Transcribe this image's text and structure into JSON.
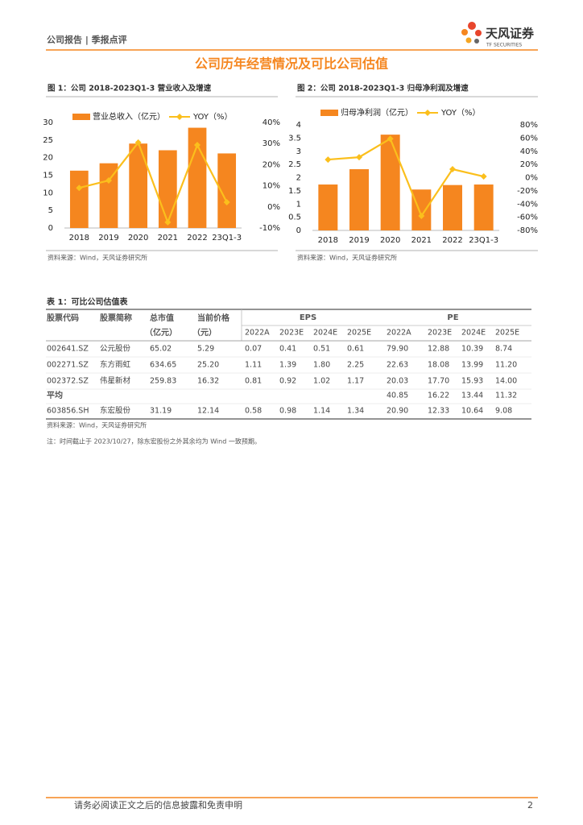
{
  "header": {
    "report": "公司报告 | 季报点评",
    "logo_cn": "天风证券",
    "logo_en": "TF SECURITIES"
  },
  "section_title": "公司历年经营情况及可比公司估值",
  "chart_data": [
    {
      "type": "bar",
      "title": "图 1：公司 2018-2023Q1-3 营业收入及增速",
      "source": "资料来源：Wind，天风证券研究所",
      "categories": [
        "2018",
        "2019",
        "2020",
        "2021",
        "2022",
        "23Q1-3"
      ],
      "series": [
        {
          "name": "营业总收入（亿元）",
          "color": "#f5861f",
          "values": [
            16.3,
            18.4,
            24.0,
            22.1,
            28.5,
            21.2
          ]
        },
        {
          "name": "YOY（%）",
          "type": "line",
          "axis": "y2",
          "color": "#fbbf1c",
          "values": [
            9,
            12.5,
            30.5,
            -7.3,
            29.3,
            2.2
          ]
        }
      ],
      "ylim": [
        0,
        30
      ],
      "yticks": [
        0,
        5,
        10,
        15,
        20,
        25,
        30
      ],
      "y2lim": [
        -10,
        40
      ],
      "y2ticks": [
        {
          "value": -10,
          "label": "-10%"
        },
        {
          "value": 0,
          "label": "0%"
        },
        {
          "value": 10,
          "label": "10%"
        },
        {
          "value": 20,
          "label": "20%"
        },
        {
          "value": 30,
          "label": "30%"
        },
        {
          "value": 40,
          "label": "40%"
        }
      ]
    },
    {
      "type": "bar",
      "title": "图 2：公司 2018-2023Q1-3 归母净利润及增速",
      "source": "资料来源：Wind，天风证券研究所",
      "categories": [
        "2018",
        "2019",
        "2020",
        "2021",
        "2022",
        "23Q1-3"
      ],
      "series": [
        {
          "name": "归母净利润（亿元）",
          "color": "#f5861f",
          "values": [
            1.74,
            2.32,
            3.63,
            1.55,
            1.72,
            1.74
          ]
        },
        {
          "name": "YOY（%）",
          "type": "line",
          "axis": "y2",
          "color": "#fbbf1c",
          "values": [
            27.4,
            31,
            59,
            -58,
            12.8,
            1.8
          ]
        }
      ],
      "ylim": [
        0,
        4
      ],
      "yticks": [
        0,
        0.5,
        1,
        1.5,
        2,
        2.5,
        3,
        3.5,
        4
      ],
      "y2lim": [
        -80,
        80
      ],
      "y2ticks": [
        {
          "value": -80,
          "label": "-80%"
        },
        {
          "value": -60,
          "label": "-60%"
        },
        {
          "value": -40,
          "label": "-40%"
        },
        {
          "value": -20,
          "label": "-20%"
        },
        {
          "value": 0,
          "label": "0%"
        },
        {
          "value": 20,
          "label": "20%"
        },
        {
          "value": 40,
          "label": "40%"
        },
        {
          "value": 60,
          "label": "60%"
        },
        {
          "value": 80,
          "label": "80%"
        }
      ]
    }
  ],
  "table": {
    "title": "表 1：可比公司估值表",
    "headers": [
      "股票代码",
      "股票简称",
      "总市值",
      "当前价格"
    ],
    "units": [
      "（亿元）",
      "（元）"
    ],
    "groups": [
      "EPS",
      "PE"
    ],
    "years": [
      "2022A",
      "2023E",
      "2024E",
      "2025E"
    ],
    "rows": [
      [
        "002641.SZ",
        "公元股份",
        "65.02",
        "5.29",
        "0.07",
        "0.41",
        "0.51",
        "0.61",
        "79.90",
        "12.88",
        "10.39",
        "8.74"
      ],
      [
        "002271.SZ",
        "东方雨虹",
        "634.65",
        "25.20",
        "1.11",
        "1.39",
        "1.80",
        "2.25",
        "22.63",
        "18.08",
        "13.99",
        "11.20"
      ],
      [
        "002372.SZ",
        "伟星新材",
        "259.83",
        "16.32",
        "0.81",
        "0.92",
        "1.02",
        "1.17",
        "20.03",
        "17.70",
        "15.93",
        "14.00"
      ],
      [
        "平均",
        null,
        null,
        null,
        null,
        null,
        null,
        null,
        "40.85",
        "16.22",
        "13.44",
        "11.32"
      ],
      [
        "603856.SH",
        "东宏股份",
        "31.19",
        "12.14",
        "0.58",
        "0.98",
        "1.14",
        "1.34",
        "20.90",
        "12.33",
        "10.64",
        "9.08"
      ]
    ],
    "source": "资料来源：Wind，天风证券研究所",
    "note": "注：时间截止于 2023/10/27，除东宏股份之外其余均为 Wind 一致预期。"
  },
  "footer": {
    "disclaimer": "请务必阅读正文之后的信息披露和免责申明",
    "page": 2
  }
}
